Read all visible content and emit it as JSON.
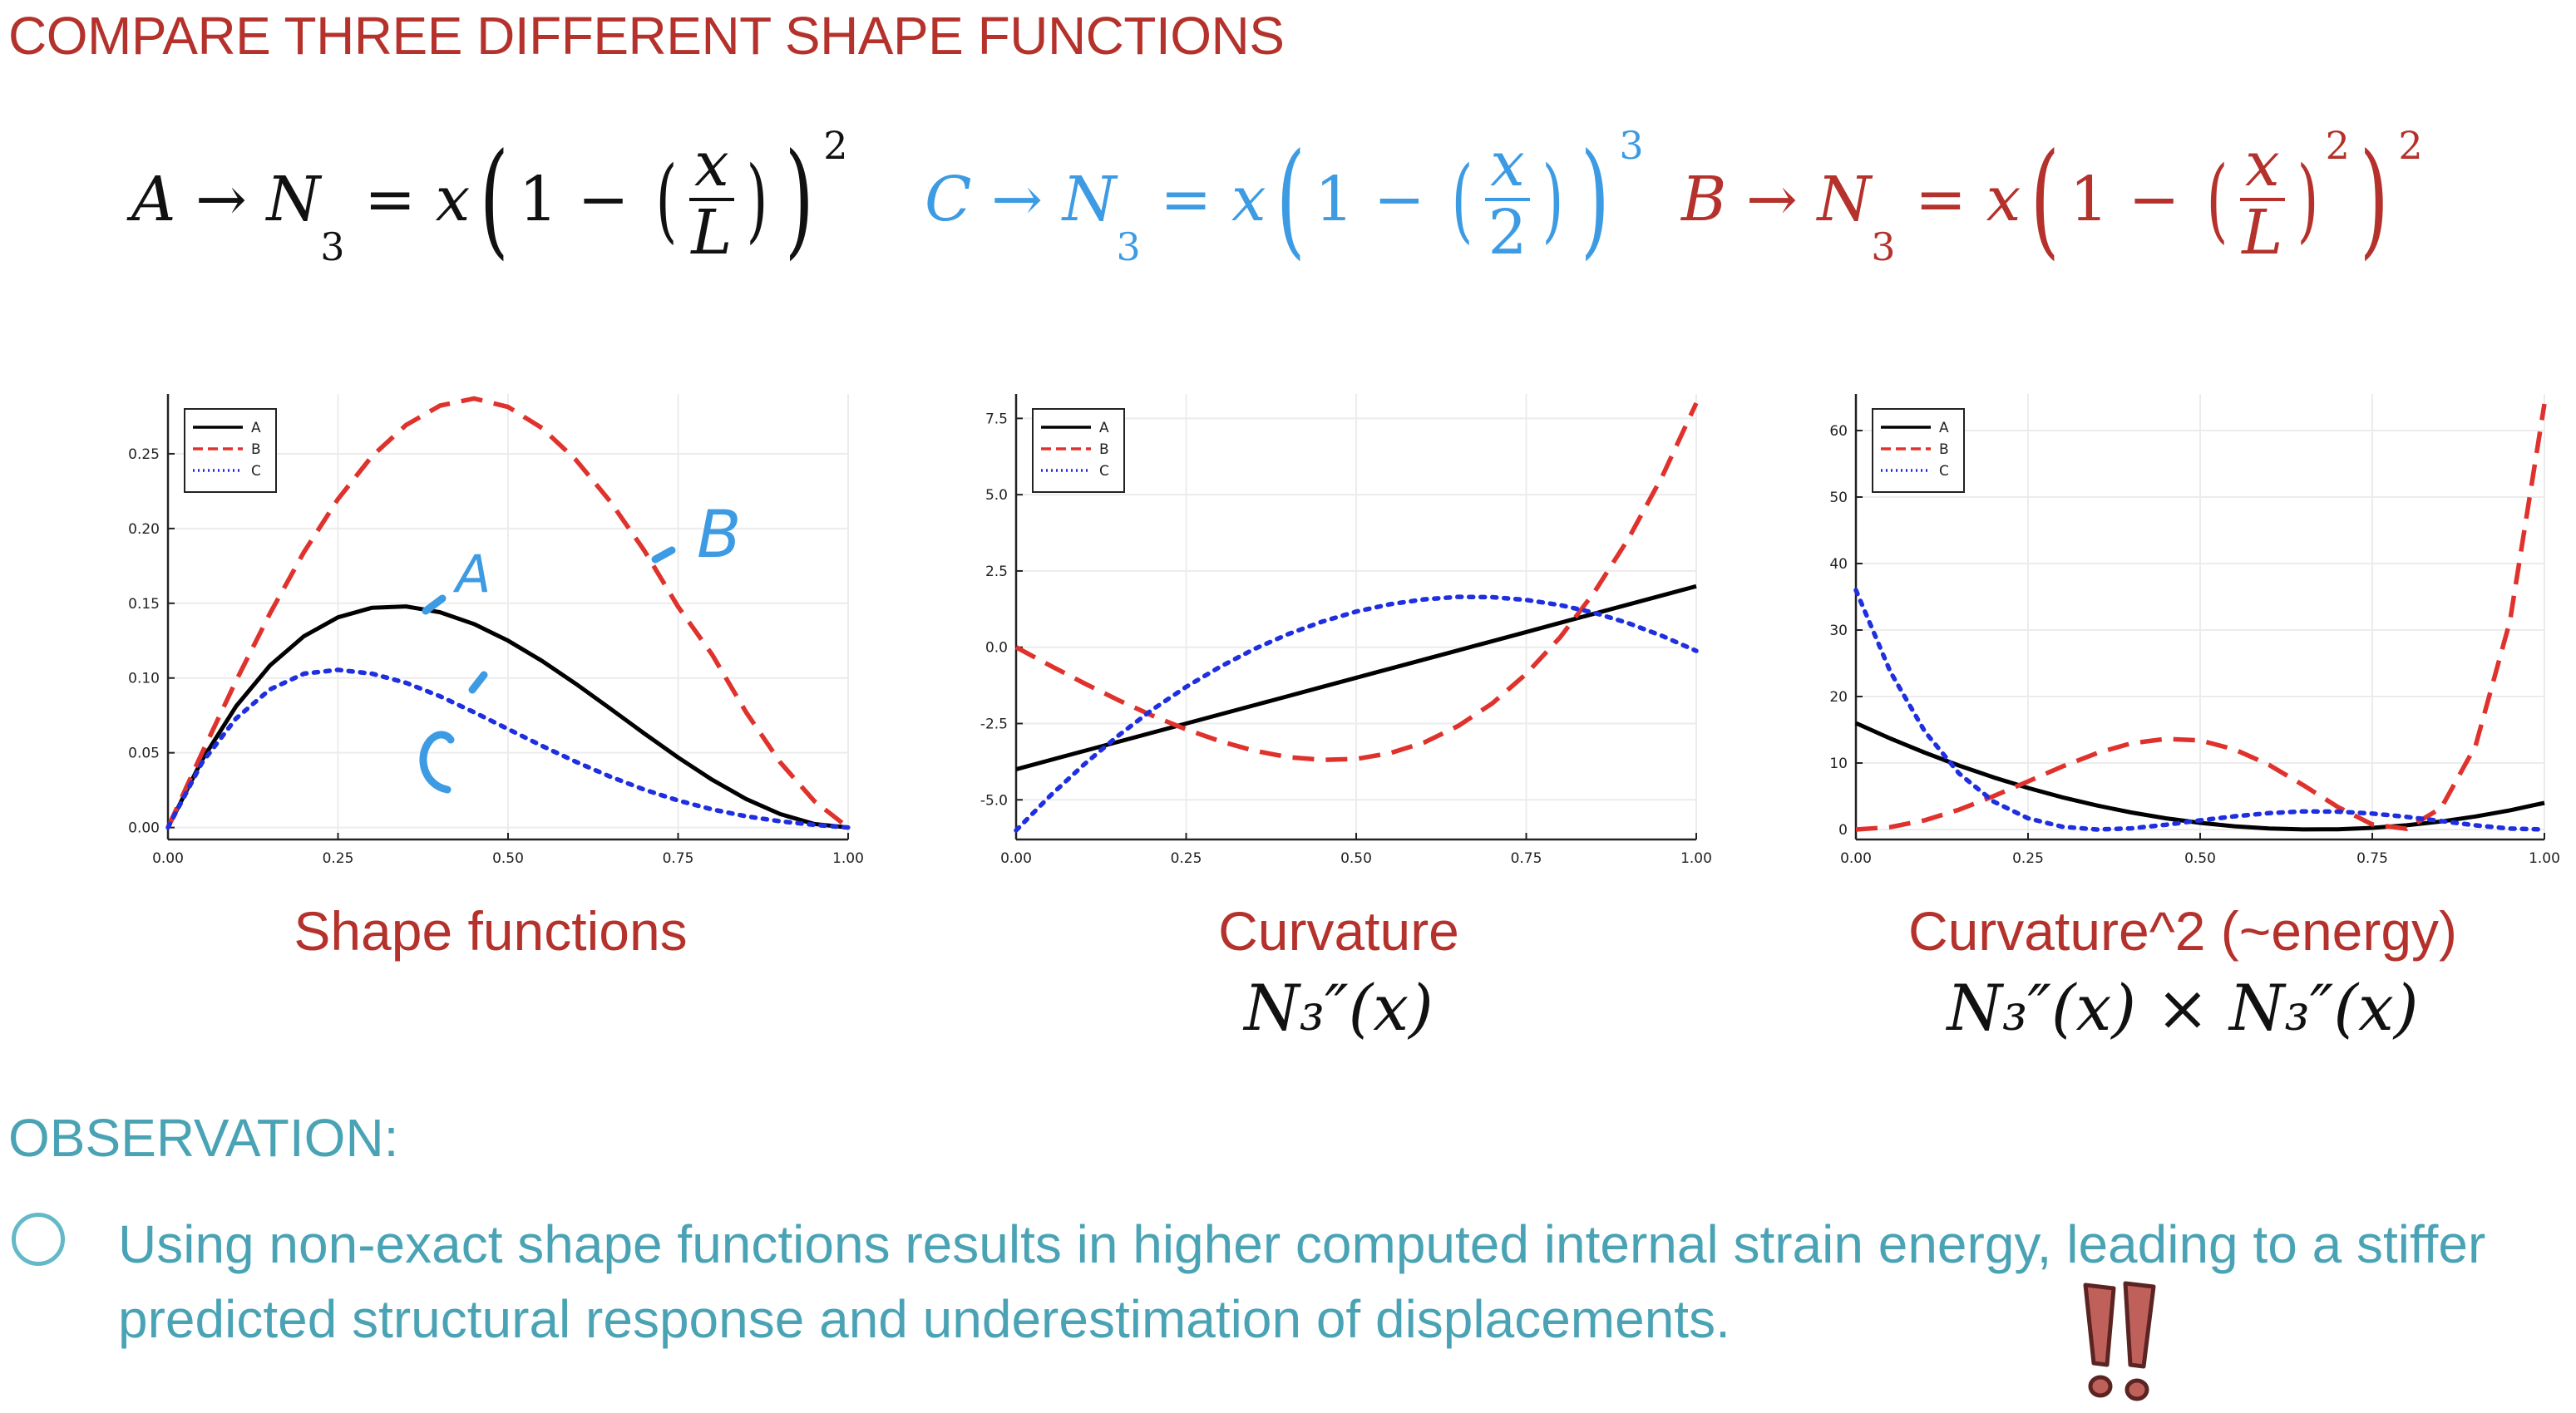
{
  "title": "COMPARE THREE DIFFERENT SHAPE FUNCTIONS",
  "equations": {
    "A": {
      "label": "A",
      "arrow": "→",
      "lhs": "N",
      "lhs_sub": "3",
      "eq": "=",
      "x": "x",
      "one": "1",
      "minus": "−",
      "num": "x",
      "den": "L",
      "power": "2"
    },
    "C": {
      "label": "C",
      "arrow": "→",
      "lhs": "N",
      "lhs_sub": "3",
      "eq": "=",
      "x": "x",
      "one": "1",
      "minus": "−",
      "num": "x",
      "den": "2",
      "power": "3"
    },
    "B": {
      "label": "B",
      "arrow": "→",
      "lhs": "N",
      "lhs_sub": "3",
      "eq": "=",
      "x": "x",
      "one": "1",
      "minus": "−",
      "num": "x",
      "den": "L",
      "inner_power": "2",
      "power": "2"
    }
  },
  "captions": {
    "shape": "Shape functions",
    "curvature": "Curvature",
    "curvature_math": "N₃″(x)",
    "energy": "Curvature^2 (~energy)",
    "energy_math": "N₃″(x) × N₃″(x)"
  },
  "annotations": {
    "A": "A",
    "B": "B",
    "C": "C",
    "bang": "!!"
  },
  "observation": {
    "heading": "OBSERVATION:",
    "text": "Using non-exact shape functions results in higher computed internal strain energy, leading to a stiffer predicted structural response and underestimation of displacements."
  },
  "colors": {
    "A": "#000000",
    "B": "#e0322c",
    "C": "#1f2fe0",
    "title": "#b5312b",
    "teal": "#4aa3b5",
    "blue_ink": "#3d9be3"
  },
  "chart_data": [
    {
      "id": "shape",
      "type": "line",
      "title": "Shape functions",
      "xlim": [
        0,
        1
      ],
      "ylim": [
        -0.008,
        0.29
      ],
      "xticks": [
        0,
        0.25,
        0.5,
        0.75,
        1.0
      ],
      "xtick_labels": [
        "0.00",
        "0.25",
        "0.50",
        "0.75",
        "1.00"
      ],
      "yticks": [
        0,
        0.05,
        0.1,
        0.15,
        0.2,
        0.25
      ],
      "ytick_labels": [
        "0.00",
        "0.05",
        "0.10",
        "0.15",
        "0.20",
        "0.25"
      ],
      "legend": "top-left",
      "x": [
        0,
        0.05,
        0.1,
        0.15,
        0.2,
        0.25,
        0.3,
        0.35,
        0.4,
        0.45,
        0.5,
        0.55,
        0.6,
        0.65,
        0.7,
        0.75,
        0.8,
        0.85,
        0.9,
        0.95,
        1.0
      ],
      "series": [
        {
          "name": "A",
          "style": "solid",
          "values": [
            0,
            0.0451,
            0.081,
            0.1084,
            0.128,
            0.1406,
            0.147,
            0.1479,
            0.144,
            0.1361,
            0.125,
            0.1114,
            0.096,
            0.0796,
            0.063,
            0.0469,
            0.032,
            0.0191,
            0.009,
            0.0024,
            0
          ]
        },
        {
          "name": "B",
          "style": "dashed",
          "values": [
            0,
            0.0498,
            0.098,
            0.1432,
            0.1843,
            0.2197,
            0.2484,
            0.2692,
            0.2822,
            0.287,
            0.2813,
            0.2672,
            0.2458,
            0.2182,
            0.1855,
            0.1477,
            0.1157,
            0.0771,
            0.0437,
            0.0178,
            0
          ]
        },
        {
          "name": "C",
          "style": "dotted",
          "values": [
            0,
            0.0433,
            0.0729,
            0.0924,
            0.1029,
            0.1055,
            0.1029,
            0.0968,
            0.0878,
            0.0771,
            0.0659,
            0.0546,
            0.0439,
            0.0341,
            0.0254,
            0.0181,
            0.0121,
            0.0075,
            0.0042,
            0.0018,
            0
          ]
        }
      ]
    },
    {
      "id": "curvature",
      "type": "line",
      "title": "Curvature",
      "xlim": [
        0,
        1
      ],
      "ylim": [
        -6.3,
        8.3
      ],
      "xticks": [
        0,
        0.25,
        0.5,
        0.75,
        1.0
      ],
      "xtick_labels": [
        "0.00",
        "0.25",
        "0.50",
        "0.75",
        "1.00"
      ],
      "yticks": [
        -5,
        -2.5,
        0,
        2.5,
        5,
        7.5
      ],
      "ytick_labels": [
        "-5.0",
        "-2.5",
        "0.0",
        "2.5",
        "5.0",
        "7.5"
      ],
      "legend": "top-left",
      "x": [
        0,
        0.05,
        0.1,
        0.15,
        0.2,
        0.25,
        0.3,
        0.35,
        0.4,
        0.45,
        0.5,
        0.55,
        0.6,
        0.65,
        0.7,
        0.75,
        0.8,
        0.85,
        0.9,
        0.95,
        1.0
      ],
      "series": [
        {
          "name": "A",
          "style": "solid",
          "values": [
            -4,
            -3.7,
            -3.4,
            -3.1,
            -2.8,
            -2.5,
            -2.2,
            -1.9,
            -1.6,
            -1.3,
            -1.0,
            -0.7,
            -0.4,
            -0.1,
            0.2,
            0.5,
            0.8,
            1.1,
            1.4,
            1.7,
            2.0
          ]
        },
        {
          "name": "B",
          "style": "dashed",
          "values": [
            0,
            -0.6,
            -1.18,
            -1.73,
            -2.24,
            -2.69,
            -3.08,
            -3.39,
            -3.6,
            -3.69,
            -3.66,
            -3.47,
            -3.12,
            -2.58,
            -1.84,
            -0.87,
            0.33,
            1.8,
            3.55,
            5.6,
            8.0
          ]
        },
        {
          "name": "C",
          "style": "dotted",
          "values": [
            -6,
            -4.87,
            -3.84,
            -2.9,
            -2.05,
            -1.3,
            -0.64,
            -0.06,
            0.43,
            0.84,
            1.17,
            1.41,
            1.57,
            1.65,
            1.64,
            1.55,
            1.38,
            1.13,
            0.79,
            0.37,
            -0.12
          ]
        }
      ]
    },
    {
      "id": "energy",
      "type": "line",
      "title": "Curvature^2 (~energy)",
      "xlim": [
        0,
        1
      ],
      "ylim": [
        -1.5,
        65.5
      ],
      "xticks": [
        0,
        0.25,
        0.5,
        0.75,
        1.0
      ],
      "xtick_labels": [
        "0.00",
        "0.25",
        "0.50",
        "0.75",
        "1.00"
      ],
      "yticks": [
        0,
        10,
        20,
        30,
        40,
        50,
        60
      ],
      "ytick_labels": [
        "0",
        "10",
        "20",
        "30",
        "40",
        "50",
        "60"
      ],
      "legend": "top-left",
      "x": [
        0,
        0.05,
        0.1,
        0.15,
        0.2,
        0.25,
        0.3,
        0.35,
        0.4,
        0.45,
        0.5,
        0.55,
        0.6,
        0.65,
        0.7,
        0.75,
        0.8,
        0.85,
        0.9,
        0.95,
        1.0
      ],
      "series": [
        {
          "name": "A",
          "style": "solid",
          "values": [
            16,
            13.69,
            11.56,
            9.61,
            7.84,
            6.25,
            4.84,
            3.61,
            2.56,
            1.69,
            1.0,
            0.49,
            0.16,
            0.01,
            0.04,
            0.25,
            0.64,
            1.21,
            1.96,
            2.89,
            4.0
          ]
        },
        {
          "name": "B",
          "style": "dashed",
          "values": [
            0,
            0.36,
            1.39,
            2.99,
            5.02,
            7.24,
            9.49,
            11.49,
            12.96,
            13.62,
            13.4,
            12.04,
            9.73,
            6.66,
            3.39,
            0.76,
            0.11,
            3.24,
            12.6,
            31.36,
            64.0
          ]
        },
        {
          "name": "C",
          "style": "dotted",
          "values": [
            36,
            23.72,
            14.75,
            8.41,
            4.2,
            1.69,
            0.41,
            0.0,
            0.18,
            0.71,
            1.37,
            1.99,
            2.46,
            2.72,
            2.69,
            2.4,
            1.9,
            1.28,
            0.62,
            0.14,
            0.01
          ]
        }
      ]
    }
  ]
}
